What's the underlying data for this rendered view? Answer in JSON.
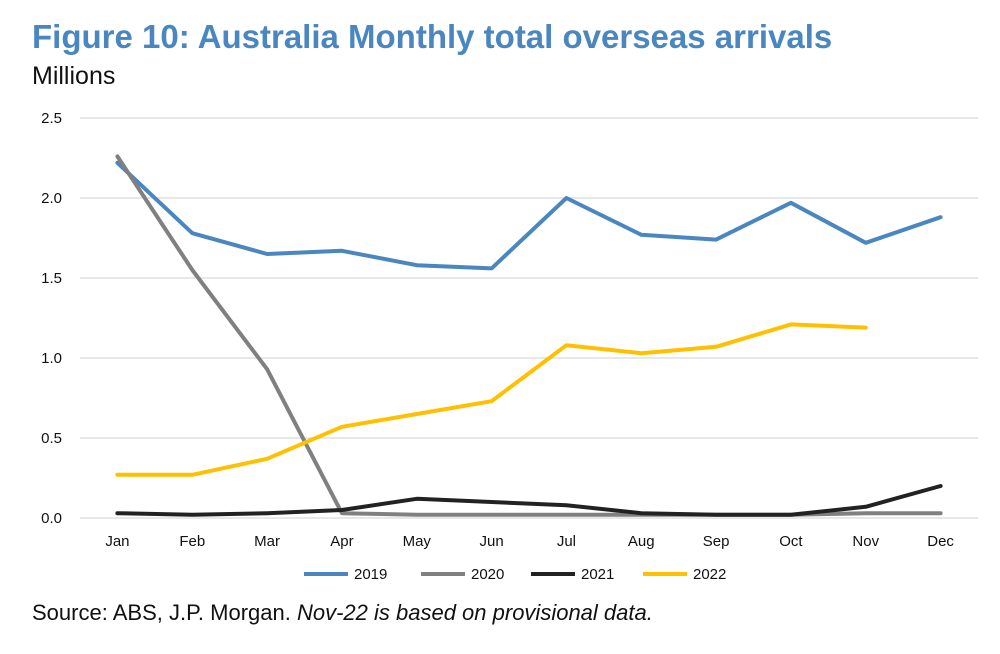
{
  "title": "Figure 10: Australia Monthly total overseas arrivals",
  "unit_label": "Millions",
  "source": {
    "prefix": "Source: ABS, J.P. Morgan.",
    "note": "Nov-22 is based on provisional data."
  },
  "colors": {
    "2019": "#4a86c0",
    "2020": "#808080",
    "2021": "#222222",
    "2022": "#ffc000",
    "grid": "#d9d9d9"
  },
  "chart_data": {
    "type": "line",
    "x": [
      "Jan",
      "Feb",
      "Mar",
      "Apr",
      "May",
      "Jun",
      "Jul",
      "Aug",
      "Sep",
      "Oct",
      "Nov",
      "Dec"
    ],
    "ylim": [
      0,
      2.5
    ],
    "yticks": [
      "0.0",
      "0.5",
      "1.0",
      "1.5",
      "2.0",
      "2.5"
    ],
    "grid": true,
    "legend": "bottom",
    "series": [
      {
        "name": "2019",
        "values": [
          2.22,
          1.78,
          1.65,
          1.67,
          1.58,
          1.56,
          2.0,
          1.77,
          1.74,
          1.97,
          1.72,
          1.88
        ]
      },
      {
        "name": "2020",
        "values": [
          2.26,
          1.55,
          0.93,
          0.03,
          0.02,
          0.02,
          0.02,
          0.02,
          0.02,
          0.02,
          0.03,
          0.03
        ]
      },
      {
        "name": "2021",
        "values": [
          0.03,
          0.02,
          0.03,
          0.05,
          0.12,
          0.1,
          0.08,
          0.03,
          0.02,
          0.02,
          0.07,
          0.2
        ]
      },
      {
        "name": "2022",
        "values": [
          0.27,
          0.27,
          0.37,
          0.57,
          0.65,
          0.73,
          1.08,
          1.03,
          1.07,
          1.21,
          1.19,
          null
        ]
      }
    ]
  }
}
